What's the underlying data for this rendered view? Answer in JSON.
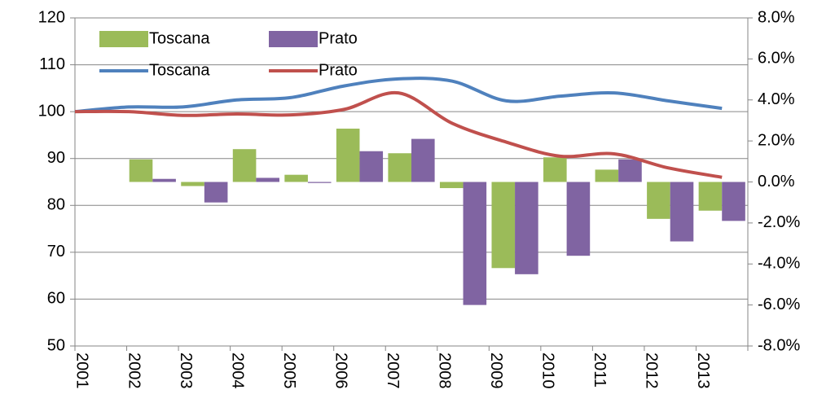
{
  "chart_data": {
    "type": "combo",
    "categories": [
      "2001",
      "2002",
      "2003",
      "2004",
      "2005",
      "2006",
      "2007",
      "2008",
      "2009",
      "2010",
      "2011",
      "2012",
      "2013"
    ],
    "series": [
      {
        "name": "Toscana",
        "type": "bar",
        "axis": "y2",
        "color": "#9bbb59",
        "values": [
          null,
          1.1,
          -0.2,
          1.6,
          0.35,
          2.6,
          1.4,
          -0.3,
          -4.2,
          1.2,
          0.6,
          -1.8,
          -1.4
        ]
      },
      {
        "name": "Prato",
        "type": "bar",
        "axis": "y2",
        "color": "#8064a2",
        "values": [
          null,
          0.15,
          -1.0,
          0.2,
          -0.05,
          1.5,
          2.1,
          -6.0,
          -4.5,
          -3.6,
          1.1,
          -2.9,
          -1.9
        ]
      },
      {
        "name": "Toscana",
        "type": "line",
        "color": "#4f81bd",
        "values": [
          100,
          101,
          101,
          102.5,
          103,
          105.5,
          107,
          106.5,
          102.3,
          103.3,
          104,
          102.3,
          100.7
        ]
      },
      {
        "name": "Prato",
        "type": "line",
        "color": "#c0504d",
        "values": [
          100,
          100,
          99.2,
          99.5,
          99.3,
          100.5,
          104,
          97.5,
          93.5,
          90.5,
          91,
          88,
          86
        ]
      }
    ],
    "ylim": [
      50,
      120
    ],
    "yticks": [
      50,
      60,
      70,
      80,
      90,
      100,
      110,
      120
    ],
    "y2lim": [
      -8,
      8
    ],
    "y2ticks": [
      {
        "value": -8,
        "label": "-8.0%"
      },
      {
        "value": -6,
        "label": "-6.0%"
      },
      {
        "value": -4,
        "label": "-4.0%"
      },
      {
        "value": -2,
        "label": "-2.0%"
      },
      {
        "value": 0,
        "label": "0.0%"
      },
      {
        "value": 2,
        "label": "2.0%"
      },
      {
        "value": 4,
        "label": "4.0%"
      },
      {
        "value": 6,
        "label": "6.0%"
      },
      {
        "value": 8,
        "label": "8.0%"
      }
    ],
    "grid": true
  }
}
